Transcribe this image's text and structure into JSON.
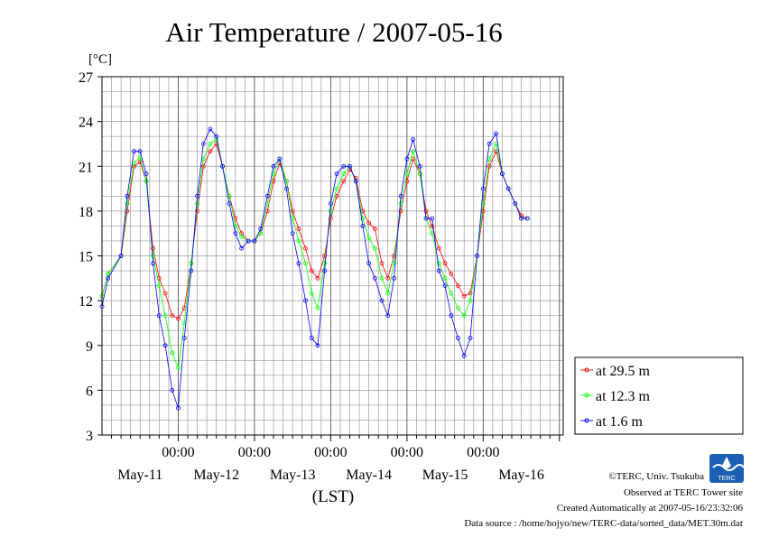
{
  "chart_data": {
    "type": "line",
    "title": "Air Temperature / 2007-05-16",
    "unit_label": "[°C]",
    "xlabel": "(LST)",
    "ylim": [
      3,
      27
    ],
    "yticks": [
      "3",
      "6",
      "9",
      "12",
      "15",
      "18",
      "21",
      "24",
      "27"
    ],
    "xlim": [
      0,
      6.05
    ],
    "time_ticks": [
      {
        "x": 1,
        "label": "00:00"
      },
      {
        "x": 2,
        "label": "00:00"
      },
      {
        "x": 3,
        "label": "00:00"
      },
      {
        "x": 4,
        "label": "00:00"
      },
      {
        "x": 5,
        "label": "00:00"
      }
    ],
    "date_labels": [
      {
        "x": 0.5,
        "label": "May-11"
      },
      {
        "x": 1.5,
        "label": "May-12"
      },
      {
        "x": 2.5,
        "label": "May-13"
      },
      {
        "x": 3.5,
        "label": "May-14"
      },
      {
        "x": 4.5,
        "label": "May-15"
      },
      {
        "x": 5.5,
        "label": "May-16"
      }
    ],
    "grid": true,
    "legend_position": "bottom-right",
    "series": [
      {
        "name": "at 29.5 m",
        "color": "#ff0000",
        "points": [
          [
            0,
            12.3
          ],
          [
            0.08,
            13.8
          ],
          [
            0.25,
            15.0
          ],
          [
            0.33,
            18.0
          ],
          [
            0.42,
            21.0
          ],
          [
            0.5,
            21.3
          ],
          [
            0.58,
            20.0
          ],
          [
            0.67,
            15.5
          ],
          [
            0.75,
            13.5
          ],
          [
            0.83,
            12.5
          ],
          [
            0.92,
            11.0
          ],
          [
            1.0,
            10.8
          ],
          [
            1.08,
            11.5
          ],
          [
            1.17,
            14.5
          ],
          [
            1.25,
            18.0
          ],
          [
            1.33,
            21.0
          ],
          [
            1.42,
            22.0
          ],
          [
            1.5,
            22.5
          ],
          [
            1.58,
            21.0
          ],
          [
            1.67,
            19.0
          ],
          [
            1.75,
            17.5
          ],
          [
            1.83,
            16.5
          ],
          [
            1.92,
            16.0
          ],
          [
            2.0,
            16.0
          ],
          [
            2.08,
            16.5
          ],
          [
            2.17,
            18.0
          ],
          [
            2.25,
            20.0
          ],
          [
            2.33,
            21.2
          ],
          [
            2.42,
            20.0
          ],
          [
            2.5,
            18.0
          ],
          [
            2.58,
            16.8
          ],
          [
            2.67,
            15.5
          ],
          [
            2.75,
            14.0
          ],
          [
            2.83,
            13.5
          ],
          [
            2.92,
            15.0
          ],
          [
            3.0,
            17.5
          ],
          [
            3.08,
            19.0
          ],
          [
            3.17,
            20.0
          ],
          [
            3.25,
            20.8
          ],
          [
            3.33,
            20.2
          ],
          [
            3.42,
            18.0
          ],
          [
            3.5,
            17.2
          ],
          [
            3.58,
            16.8
          ],
          [
            3.67,
            14.5
          ],
          [
            3.75,
            13.5
          ],
          [
            3.83,
            15.0
          ],
          [
            3.92,
            18.0
          ],
          [
            4.0,
            20.0
          ],
          [
            4.08,
            21.5
          ],
          [
            4.17,
            20.5
          ],
          [
            4.25,
            18.0
          ],
          [
            4.33,
            17.0
          ],
          [
            4.42,
            15.5
          ],
          [
            4.5,
            14.5
          ],
          [
            4.58,
            13.8
          ],
          [
            4.67,
            13.0
          ],
          [
            4.75,
            12.3
          ],
          [
            4.83,
            12.5
          ],
          [
            4.92,
            15.0
          ],
          [
            5.0,
            18.0
          ],
          [
            5.08,
            21.0
          ],
          [
            5.17,
            22.0
          ],
          [
            5.25,
            20.5
          ],
          [
            5.33,
            19.5
          ],
          [
            5.42,
            18.5
          ],
          [
            5.5,
            17.7
          ],
          [
            5.58,
            17.5
          ]
        ]
      },
      {
        "name": "at 12.3 m",
        "color": "#00ff00",
        "points": [
          [
            0,
            12.3
          ],
          [
            0.08,
            13.8
          ],
          [
            0.25,
            15.0
          ],
          [
            0.33,
            18.5
          ],
          [
            0.42,
            21.2
          ],
          [
            0.5,
            21.6
          ],
          [
            0.58,
            20.0
          ],
          [
            0.67,
            15.0
          ],
          [
            0.75,
            13.0
          ],
          [
            0.83,
            11.0
          ],
          [
            0.92,
            8.5
          ],
          [
            1.0,
            7.5
          ],
          [
            1.08,
            10.5
          ],
          [
            1.17,
            14.5
          ],
          [
            1.25,
            18.5
          ],
          [
            1.33,
            21.5
          ],
          [
            1.42,
            22.5
          ],
          [
            1.5,
            22.8
          ],
          [
            1.58,
            21.0
          ],
          [
            1.67,
            19.0
          ],
          [
            1.75,
            17.0
          ],
          [
            1.83,
            16.3
          ],
          [
            1.92,
            16.0
          ],
          [
            2.0,
            16.0
          ],
          [
            2.08,
            16.5
          ],
          [
            2.17,
            18.5
          ],
          [
            2.25,
            20.5
          ],
          [
            2.33,
            21.5
          ],
          [
            2.42,
            20.0
          ],
          [
            2.5,
            17.5
          ],
          [
            2.58,
            16.0
          ],
          [
            2.67,
            14.5
          ],
          [
            2.75,
            12.5
          ],
          [
            2.83,
            11.5
          ],
          [
            2.92,
            14.5
          ],
          [
            3.0,
            18.0
          ],
          [
            3.08,
            19.5
          ],
          [
            3.17,
            20.5
          ],
          [
            3.25,
            21.0
          ],
          [
            3.33,
            20.0
          ],
          [
            3.42,
            17.5
          ],
          [
            3.5,
            16.2
          ],
          [
            3.58,
            15.5
          ],
          [
            3.67,
            13.5
          ],
          [
            3.75,
            12.5
          ],
          [
            3.83,
            14.5
          ],
          [
            3.92,
            18.5
          ],
          [
            4.0,
            20.5
          ],
          [
            4.08,
            22.0
          ],
          [
            4.17,
            20.5
          ],
          [
            4.25,
            17.5
          ],
          [
            4.33,
            16.5
          ],
          [
            4.42,
            14.5
          ],
          [
            4.5,
            13.5
          ],
          [
            4.58,
            12.5
          ],
          [
            4.67,
            11.5
          ],
          [
            4.75,
            11.0
          ],
          [
            4.83,
            12.0
          ],
          [
            4.92,
            15.0
          ],
          [
            5.0,
            18.5
          ],
          [
            5.08,
            21.5
          ],
          [
            5.17,
            22.5
          ],
          [
            5.25,
            20.5
          ],
          [
            5.33,
            19.5
          ],
          [
            5.42,
            18.5
          ],
          [
            5.5,
            17.5
          ],
          [
            5.58,
            17.5
          ]
        ]
      },
      {
        "name": "at 1.6 m",
        "color": "#0000ff",
        "points": [
          [
            0,
            11.6
          ],
          [
            0.08,
            13.5
          ],
          [
            0.25,
            15.0
          ],
          [
            0.33,
            19.0
          ],
          [
            0.42,
            22.0
          ],
          [
            0.5,
            22.0
          ],
          [
            0.58,
            20.5
          ],
          [
            0.67,
            14.5
          ],
          [
            0.75,
            11.0
          ],
          [
            0.83,
            9.0
          ],
          [
            0.92,
            6.0
          ],
          [
            1.0,
            4.8
          ],
          [
            1.08,
            9.5
          ],
          [
            1.17,
            14.0
          ],
          [
            1.25,
            19.0
          ],
          [
            1.33,
            22.5
          ],
          [
            1.42,
            23.5
          ],
          [
            1.5,
            23.0
          ],
          [
            1.58,
            21.0
          ],
          [
            1.67,
            18.5
          ],
          [
            1.75,
            16.5
          ],
          [
            1.83,
            15.5
          ],
          [
            1.92,
            16.0
          ],
          [
            2.0,
            16.0
          ],
          [
            2.08,
            16.8
          ],
          [
            2.17,
            19.0
          ],
          [
            2.25,
            21.0
          ],
          [
            2.33,
            21.5
          ],
          [
            2.42,
            19.5
          ],
          [
            2.5,
            16.5
          ],
          [
            2.58,
            14.5
          ],
          [
            2.67,
            12.0
          ],
          [
            2.75,
            9.5
          ],
          [
            2.83,
            9.0
          ],
          [
            2.92,
            14.0
          ],
          [
            3.0,
            18.5
          ],
          [
            3.08,
            20.5
          ],
          [
            3.17,
            21.0
          ],
          [
            3.25,
            21.0
          ],
          [
            3.33,
            20.0
          ],
          [
            3.42,
            17.0
          ],
          [
            3.5,
            14.5
          ],
          [
            3.58,
            13.5
          ],
          [
            3.67,
            12.0
          ],
          [
            3.75,
            11.0
          ],
          [
            3.83,
            13.5
          ],
          [
            3.92,
            19.0
          ],
          [
            4.0,
            21.5
          ],
          [
            4.08,
            22.8
          ],
          [
            4.17,
            21.0
          ],
          [
            4.25,
            17.5
          ],
          [
            4.33,
            17.5
          ],
          [
            4.42,
            14.0
          ],
          [
            4.5,
            13.0
          ],
          [
            4.58,
            11.0
          ],
          [
            4.67,
            9.5
          ],
          [
            4.75,
            8.3
          ],
          [
            4.83,
            9.5
          ],
          [
            4.92,
            15.0
          ],
          [
            5.0,
            19.5
          ],
          [
            5.08,
            22.5
          ],
          [
            5.17,
            23.2
          ],
          [
            5.25,
            20.5
          ],
          [
            5.33,
            19.5
          ],
          [
            5.42,
            18.5
          ],
          [
            5.5,
            17.5
          ],
          [
            5.58,
            17.5
          ]
        ]
      }
    ]
  },
  "credits": {
    "copyright": "©TERC, Univ. Tsukuba",
    "observed": "Observed at TERC Tower site",
    "created": "Created Automatically at 2007-05-16/23:32:06",
    "source": "Data source : /home/hojyo/new/TERC-data/sorted_data/MET.30m.dat",
    "logo_text": "TERC"
  }
}
